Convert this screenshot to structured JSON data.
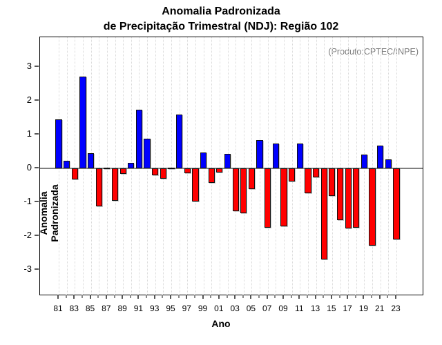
{
  "title": {
    "line1": "Anomalia Padronizada",
    "line2": "de Precipitação Trimestral (NDJ): Região 102"
  },
  "annotation": "(Produto:CPTEC/INPE)",
  "axes": {
    "x_label": "Ano",
    "y_label": "Anomalia Padronizada",
    "y_ticks": [
      "3",
      "2",
      "1",
      "0",
      "-1",
      "-2",
      "-3"
    ],
    "x_tick_labels": [
      "81",
      "83",
      "85",
      "87",
      "89",
      "91",
      "93",
      "95",
      "97",
      "99",
      "01",
      "03",
      "05",
      "07",
      "09",
      "11",
      "13",
      "15",
      "17",
      "19",
      "21",
      "23"
    ]
  },
  "colors": {
    "positive": "#0000ff",
    "negative": "#ff0000",
    "zero_line": "#808080",
    "grid": "#d9d9d9",
    "annotation": "#7d7d7d",
    "bar_border": "#111111"
  },
  "chart_data": {
    "type": "bar",
    "title": "Anomalia Padronizada de Precipitação Trimestral (NDJ): Região 102",
    "xlabel": "Ano",
    "ylabel": "Anomalia Padronizada",
    "ylim": [
      -3.8,
      3.8
    ],
    "grid": "vertical-dotted",
    "legend": "none",
    "x": [
      "81",
      "82",
      "83",
      "84",
      "85",
      "86",
      "87",
      "88",
      "89",
      "90",
      "91",
      "92",
      "93",
      "94",
      "95",
      "96",
      "97",
      "98",
      "99",
      "00",
      "01",
      "02",
      "03",
      "04",
      "05",
      "06",
      "07",
      "08",
      "09",
      "10",
      "11",
      "12",
      "13",
      "14",
      "15",
      "16",
      "17",
      "18",
      "19",
      "20",
      "21",
      "22",
      "23"
    ],
    "values": [
      1.45,
      0.23,
      -0.33,
      2.72,
      0.44,
      -1.13,
      0.03,
      -0.96,
      -0.16,
      0.16,
      1.73,
      0.88,
      -0.21,
      -0.31,
      0.02,
      1.59,
      -0.14,
      -0.98,
      0.46,
      -0.43,
      -0.12,
      0.42,
      -1.27,
      -1.33,
      -0.62,
      0.84,
      -1.76,
      0.74,
      -1.72,
      -0.38,
      0.74,
      -0.73,
      -0.26,
      -2.69,
      -0.81,
      -1.54,
      -1.78,
      -1.76,
      0.41,
      -2.29,
      0.67,
      0.27,
      -2.1
    ],
    "positive_color": "#0000ff",
    "negative_color": "#ff0000"
  }
}
